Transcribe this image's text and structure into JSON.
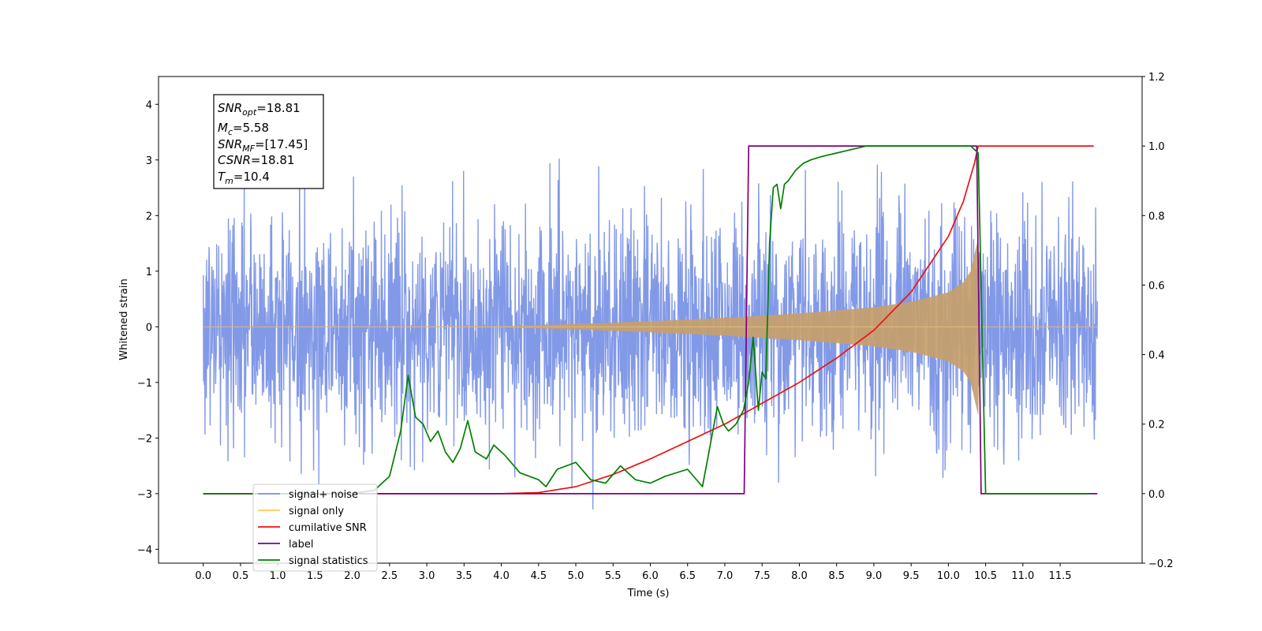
{
  "chart_data": {
    "type": "line",
    "xlabel": "Time (s)",
    "ylabel": "Whitened strain",
    "xlim": [
      -0.6,
      12.6
    ],
    "ylim": [
      -4.25,
      4.5
    ],
    "ylim_right": [
      -0.2,
      1.2
    ],
    "x_ticks": [
      "0.0",
      "0.5",
      "1.0",
      "1.5",
      "2.0",
      "2.5",
      "3.0",
      "3.5",
      "4.0",
      "4.5",
      "5.0",
      "5.5",
      "6.0",
      "6.5",
      "7.0",
      "7.5",
      "8.0",
      "8.5",
      "9.0",
      "9.5",
      "10.0",
      "10.5",
      "11.0",
      "11.5"
    ],
    "y_ticks_left": [
      "−4",
      "−3",
      "−2",
      "−1",
      "0",
      "1",
      "2",
      "3",
      "4"
    ],
    "y_ticks_right": [
      "−0.2",
      "0.0",
      "0.2",
      "0.4",
      "0.6",
      "0.8",
      "1.0",
      "1.2"
    ],
    "legend_position": "lower-left",
    "legend": [
      {
        "label": "signal+ noise",
        "color": "#7b93e6"
      },
      {
        "label": "signal only",
        "color": "#ffc85a"
      },
      {
        "label": "cumilative SNR",
        "color": "#ee1111"
      },
      {
        "label": "label",
        "color": "#800080"
      },
      {
        "label": "signal statistics",
        "color": "#008000"
      }
    ],
    "annotation": [
      "SNR_opt=18.81",
      "M_c=5.58",
      "SNR_MF=[17.45]",
      "CSNR=18.81",
      "T_m=10.4"
    ],
    "series": [
      {
        "name": "signal+ noise",
        "axis": "left",
        "color": "#7b93e6",
        "noise_envelope": {
          "x_start": 0.0,
          "x_end": 12.0,
          "typical_peak": 2.6,
          "max": 4.12,
          "min": -3.85
        }
      },
      {
        "name": "signal only",
        "axis": "left",
        "color": "#ffc85a",
        "x": [
          0.0,
          4.0,
          5.0,
          6.0,
          7.0,
          8.0,
          9.0,
          9.5,
          10.0,
          10.2,
          10.3,
          10.4,
          10.42,
          12.0
        ],
        "y": [
          0.0,
          0.01,
          0.05,
          0.1,
          0.16,
          0.24,
          0.35,
          0.45,
          0.62,
          0.8,
          1.0,
          1.6,
          0.0,
          0.0
        ]
      },
      {
        "name": "cumilative SNR",
        "axis": "right",
        "color": "#ee1111",
        "x": [
          3.0,
          4.0,
          4.5,
          5.0,
          5.5,
          6.0,
          6.5,
          7.0,
          7.5,
          8.0,
          8.5,
          9.0,
          9.5,
          10.0,
          10.2,
          10.35,
          10.4,
          12.0
        ],
        "y": [
          0.0,
          0.0,
          0.003,
          0.02,
          0.055,
          0.1,
          0.15,
          0.2,
          0.26,
          0.32,
          0.39,
          0.47,
          0.58,
          0.74,
          0.84,
          0.95,
          1.0,
          1.0
        ]
      },
      {
        "name": "label",
        "axis": "right",
        "color": "#800080",
        "x": [
          0.0,
          7.26,
          7.32,
          10.38,
          10.44,
          12.0
        ],
        "y": [
          0.0,
          0.0,
          1.0,
          1.0,
          0.0,
          0.0
        ]
      },
      {
        "name": "signal statistics",
        "axis": "right",
        "color": "#008000",
        "x": [
          0.0,
          2.0,
          2.3,
          2.5,
          2.65,
          2.75,
          2.85,
          2.95,
          3.05,
          3.15,
          3.25,
          3.35,
          3.45,
          3.55,
          3.65,
          3.8,
          3.9,
          4.05,
          4.25,
          4.5,
          4.6,
          4.75,
          5.0,
          5.2,
          5.4,
          5.6,
          5.8,
          6.0,
          6.2,
          6.5,
          6.7,
          6.9,
          6.98,
          7.05,
          7.15,
          7.25,
          7.32,
          7.38,
          7.45,
          7.5,
          7.55,
          7.6,
          7.65,
          7.7,
          7.75,
          7.8,
          7.85,
          7.95,
          8.05,
          8.15,
          8.3,
          8.5,
          8.7,
          8.9,
          9.0,
          10.3,
          10.4,
          10.5,
          11.9
        ],
        "y": [
          0.0,
          0.0,
          0.01,
          0.05,
          0.18,
          0.34,
          0.22,
          0.2,
          0.15,
          0.18,
          0.12,
          0.09,
          0.13,
          0.21,
          0.12,
          0.1,
          0.14,
          0.11,
          0.06,
          0.04,
          0.02,
          0.07,
          0.09,
          0.04,
          0.03,
          0.08,
          0.04,
          0.03,
          0.05,
          0.07,
          0.02,
          0.25,
          0.2,
          0.18,
          0.2,
          0.24,
          0.32,
          0.45,
          0.24,
          0.35,
          0.33,
          0.72,
          0.88,
          0.89,
          0.82,
          0.89,
          0.9,
          0.93,
          0.95,
          0.96,
          0.97,
          0.98,
          0.99,
          1.0,
          1.0,
          1.0,
          0.98,
          0.0,
          0.0
        ]
      }
    ]
  }
}
